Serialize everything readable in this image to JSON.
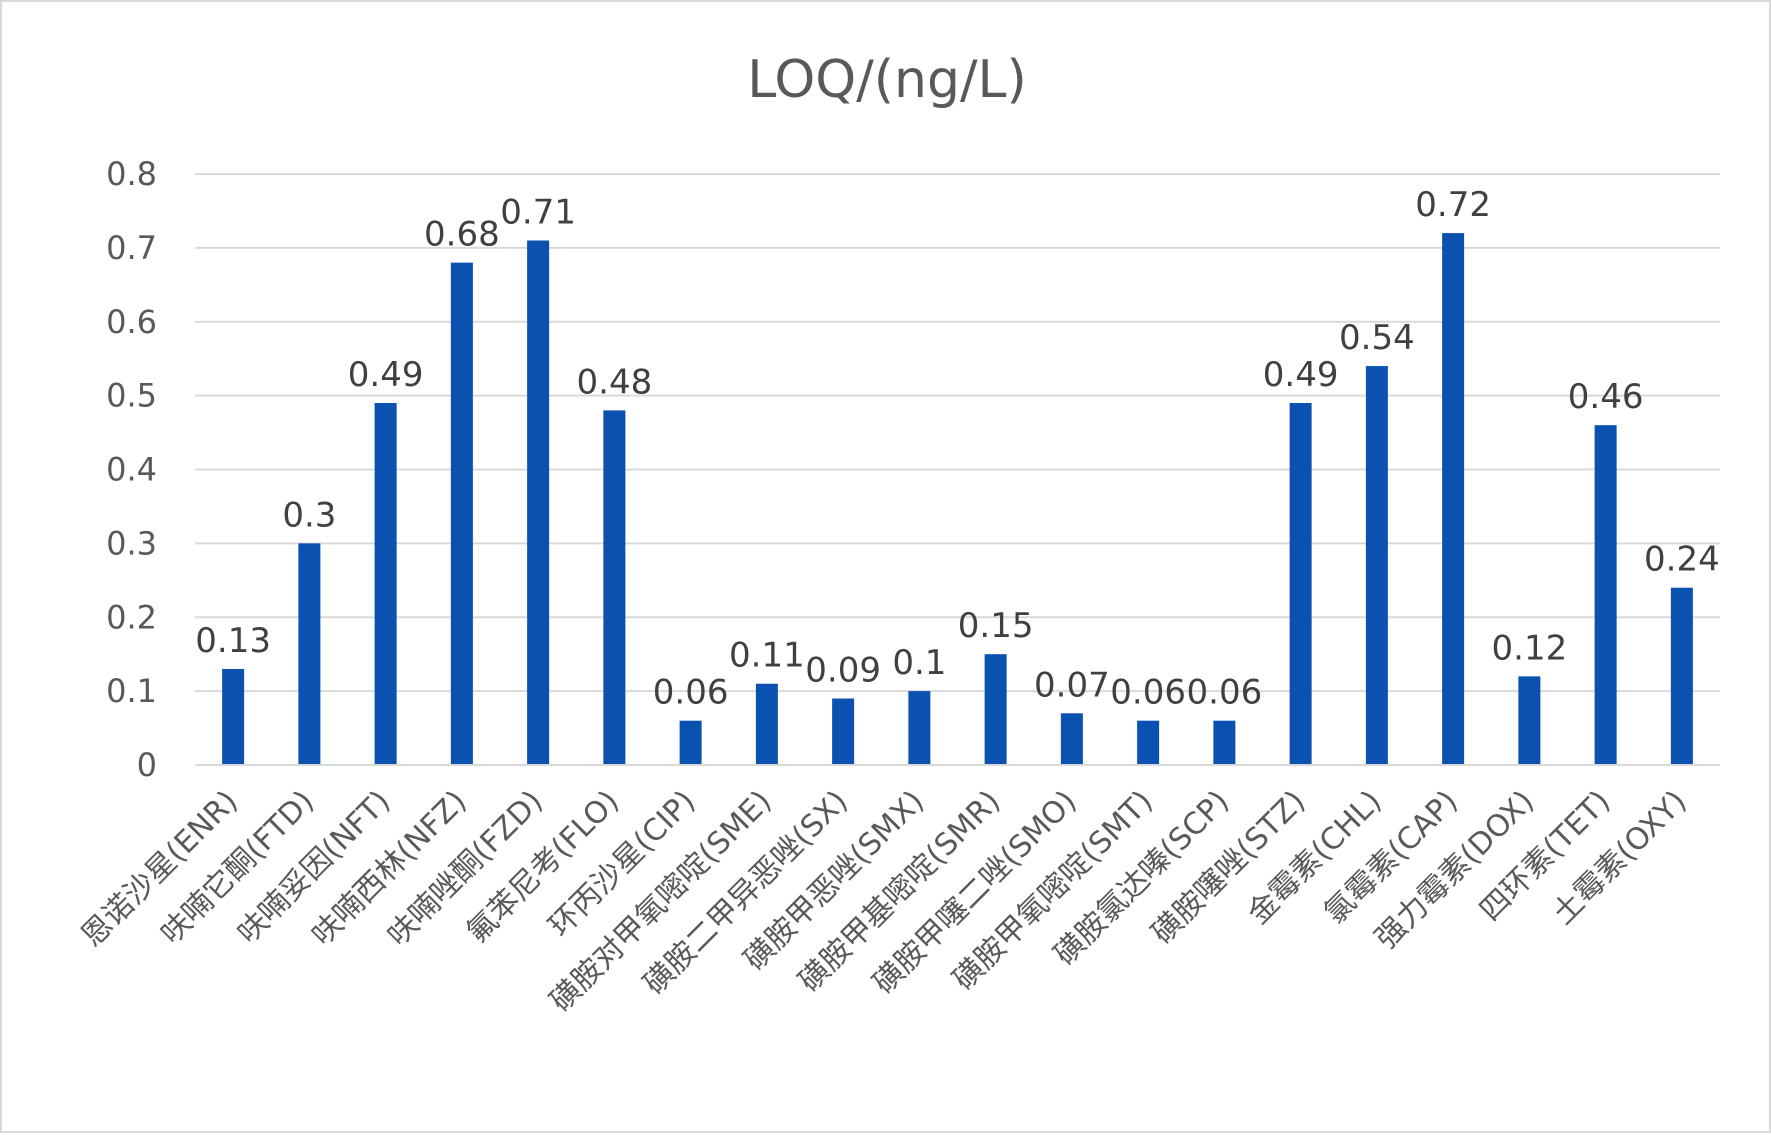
{
  "chart_data": {
    "type": "bar",
    "title": "LOQ/(ng/L)",
    "xlabel": "",
    "ylabel": "",
    "ylim": [
      0,
      0.8
    ],
    "yticks": [
      "0",
      "0.1",
      "0.2",
      "0.3",
      "0.4",
      "0.5",
      "0.6",
      "0.7",
      "0.8"
    ],
    "grid": true,
    "legend": "none",
    "bar_color": "#0b52b0",
    "categories": [
      "恩诺沙星(ENR)",
      "呋喃它酮(FTD)",
      "呋喃妥因(NFT)",
      "呋喃西林(NFZ)",
      "呋喃唑酮(FZD)",
      "氟苯尼考(FLO)",
      "环丙沙星(CIP)",
      "磺胺对甲氧嘧啶(SME)",
      "磺胺二甲异恶唑(SX)",
      "磺胺甲恶唑(SMX)",
      "磺胺甲基嘧啶(SMR)",
      "磺胺甲噻二唑(SMO)",
      "磺胺甲氧嘧啶(SMT)",
      "磺胺氯达嗪(SCP)",
      "磺胺噻唑(STZ)",
      "金霉素(CHL)",
      "氯霉素(CAP)",
      "强力霉素(DOX)",
      "四环素(TET)",
      "土霉素(OXY)"
    ],
    "values": [
      0.13,
      0.3,
      0.49,
      0.68,
      0.71,
      0.48,
      0.06,
      0.11,
      0.09,
      0.1,
      0.15,
      0.07,
      0.06,
      0.06,
      0.49,
      0.54,
      0.72,
      0.12,
      0.46,
      0.24
    ],
    "data_labels": [
      "0.13",
      "0.3",
      "0.49",
      "0.68",
      "0.71",
      "0.48",
      "0.06",
      "0.11",
      "0.09",
      "0.1",
      "0.15",
      "0.07",
      "0.06",
      "0.06",
      "0.49",
      "0.54",
      "0.72",
      "0.12",
      "0.46",
      "0.24"
    ]
  }
}
